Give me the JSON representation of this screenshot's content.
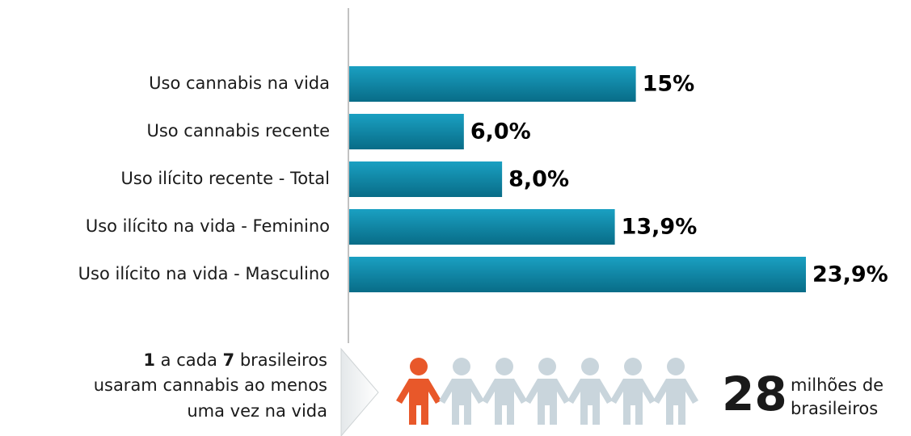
{
  "chart_data": {
    "type": "bar",
    "orientation": "horizontal",
    "categories": [
      "Uso cannabis na vida",
      "Uso cannabis recente",
      "Uso ilícito recente - Total",
      "Uso ilícito na vida - Feminino",
      "Uso ilícito na vida - Masculino"
    ],
    "values": [
      15,
      6.0,
      8.0,
      13.9,
      23.9
    ],
    "value_labels": [
      "15%",
      "6,0%",
      "8,0%",
      "13,9%",
      "23,9%"
    ],
    "color": "#0b86a6"
  },
  "callout": {
    "count": 1,
    "text_a": "a cada",
    "total": 7,
    "text_b": "brasileiros",
    "line2": "usaram cannabis ao menos",
    "line3": "uma vez na vida",
    "figure": 28,
    "figure_label": [
      "milhões de",
      "brasileiros"
    ],
    "highlight_color": "#e8582a",
    "icon_color": "#c9d5dc"
  }
}
